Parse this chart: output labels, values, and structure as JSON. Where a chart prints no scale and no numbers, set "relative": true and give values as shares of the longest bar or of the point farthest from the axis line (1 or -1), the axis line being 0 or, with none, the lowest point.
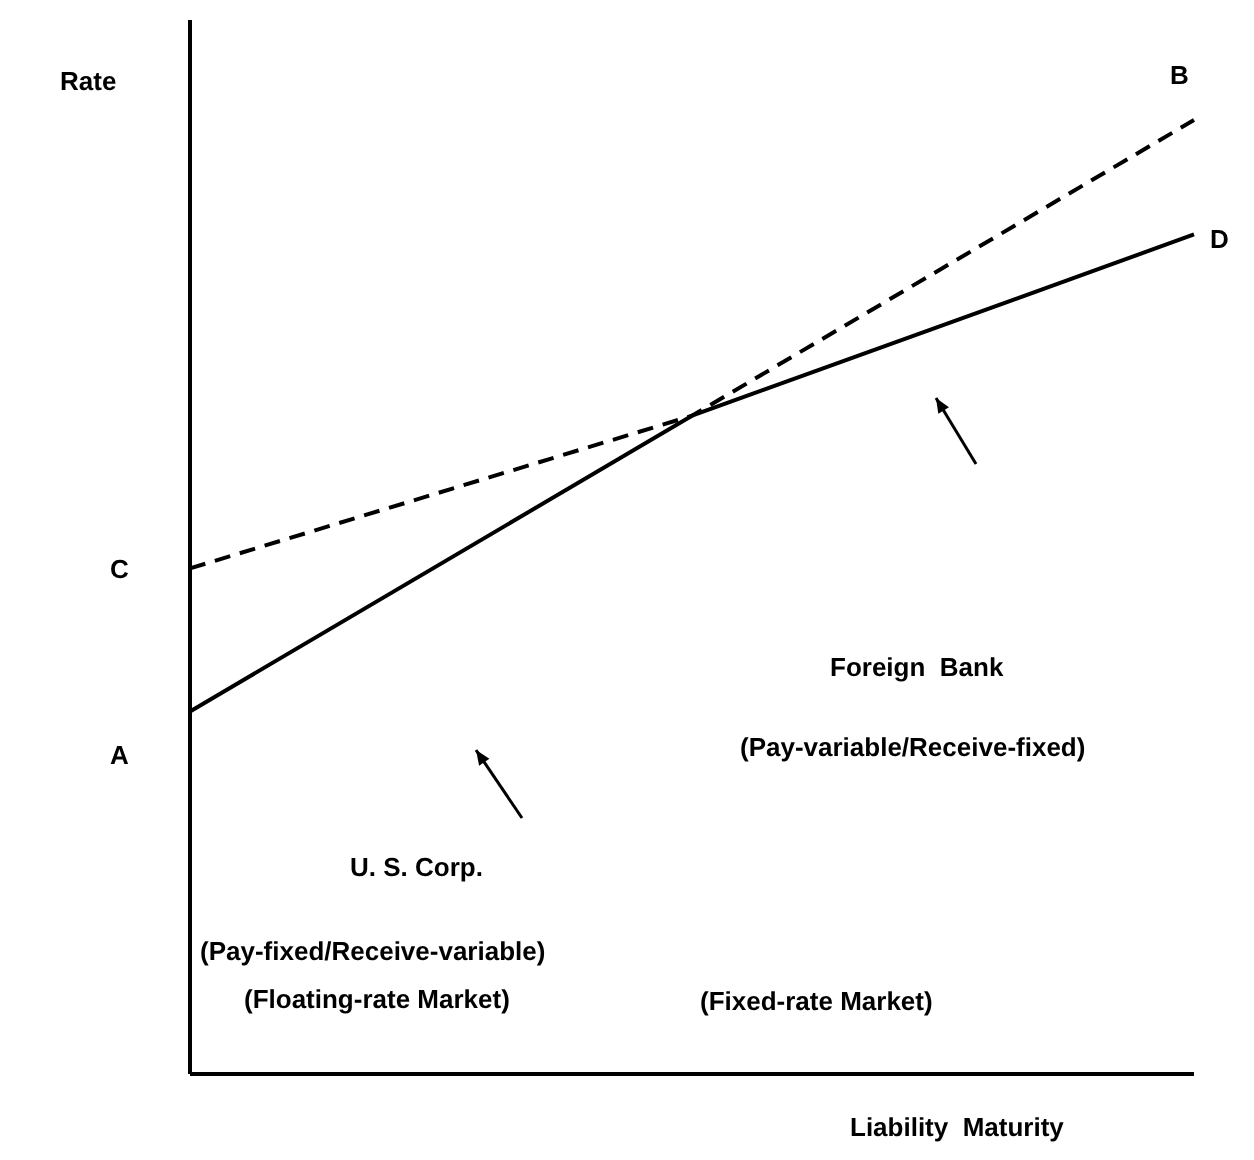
{
  "chart_data": {
    "type": "line",
    "relative": true,
    "xlabel": "Liability  Maturity",
    "ylabel": "Rate",
    "categories": [
      null,
      null,
      null
    ],
    "series": [
      {
        "color": "#000000",
        "values": [
          0.38,
          0.69,
          0.88
        ],
        "line_style": "solid"
      },
      {
        "color": "#000000",
        "values": [
          0.53,
          0.69,
          1.0
        ],
        "line_style": "dashed"
      }
    ],
    "annotations": [
      "A",
      "C",
      "B",
      "D",
      "U. S. Corp.",
      "(Pay-fixed/Receive-variable)",
      "Foreign  Bank",
      "(Pay-variable/Receive-fixed)",
      "(Floating-rate Market)",
      "(Fixed-rate Market)"
    ],
    "marker": "none"
  }
}
